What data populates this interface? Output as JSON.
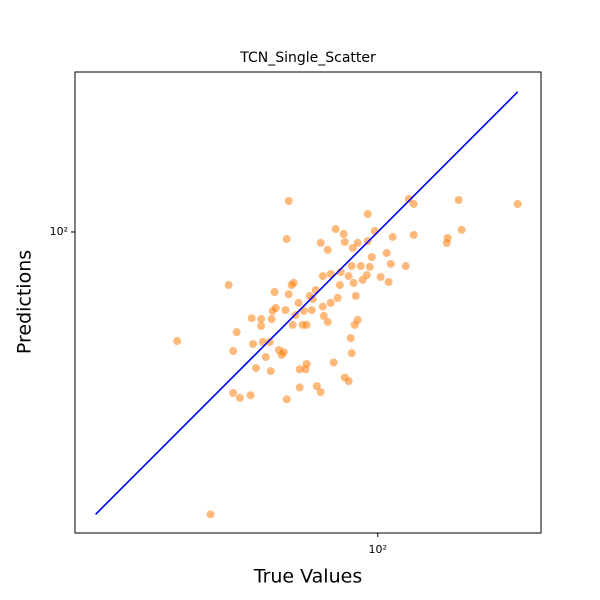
{
  "chart_data": {
    "type": "scatter",
    "title": "TCN_Single_Scatter",
    "x_label": "True Values",
    "y_label": "Predictions",
    "log_x": true,
    "log_y": true,
    "color": "#ff7f0e",
    "xlim": [
      17.5,
      256
    ],
    "ylim": [
      17.7,
      251
    ],
    "xticks": [
      {
        "value": 100,
        "label": "10²"
      }
    ],
    "yticks": [
      {
        "value": 100,
        "label": "10²"
      }
    ],
    "x": [
      31.5,
      38.2,
      42.4,
      43.5,
      43.5,
      44.4,
      45.2,
      48.1,
      48.4,
      48.8,
      49.6,
      51.1,
      51.1,
      51.6,
      52.5,
      53.7,
      54.0,
      54.3,
      54.6,
      55.2,
      55.6,
      56.6,
      57.5,
      58.2,
      58.8,
      59.2,
      59.2,
      59.9,
      59.9,
      60.9,
      61.3,
      61.6,
      62.3,
      63.4,
      63.8,
      63.8,
      64.9,
      65.3,
      66.0,
      66.4,
      66.4,
      67.6,
      68.4,
      68.8,
      70.0,
      70.4,
      72.0,
      72.0,
      72.9,
      72.9,
      73.3,
      75.0,
      75.0,
      76.3,
      76.3,
      77.6,
      78.5,
      79.4,
      80.4,
      80.8,
      82.2,
      82.7,
      82.7,
      84.6,
      84.6,
      85.6,
      86.1,
      86.1,
      86.6,
      87.0,
      87.6,
      88.1,
      89.1,
      89.1,
      90.7,
      91.7,
      93.9,
      94.4,
      94.4,
      95.5,
      96.6,
      98.3,
      101.7,
      105.3,
      106.5,
      107.8,
      109.0,
      117.5,
      119.6,
      123.0,
      123.0,
      148.8,
      149.6,
      159.4,
      162.1,
      223.9
    ],
    "values": [
      53.4,
      19.7,
      73.7,
      39.6,
      50.4,
      56.2,
      38.5,
      39.1,
      60.9,
      52.5,
      45.7,
      60.6,
      58.2,
      53.1,
      48.7,
      53.1,
      44.9,
      60.6,
      63.5,
      70.8,
      64.6,
      50.7,
      49.3,
      50.1,
      63.8,
      38.2,
      96.0,
      119.5,
      69.9,
      73.7,
      58.6,
      74.6,
      62.0,
      66.5,
      45.4,
      40.9,
      58.6,
      63.5,
      45.4,
      46.8,
      58.6,
      69.2,
      63.8,
      68.0,
      71.6,
      41.2,
      93.9,
      39.8,
      65.1,
      77.6,
      61.7,
      90.2,
      59.6,
      78.5,
      66.5,
      47.2,
      101.7,
      68.4,
      73.7,
      79.4,
      98.9,
      43.3,
      94.4,
      42.4,
      77.6,
      54.3,
      49.8,
      82.2,
      91.2,
      74.6,
      58.6,
      69.2,
      60.3,
      93.9,
      82.2,
      75.9,
      78.0,
      110.9,
      94.9,
      81.8,
      86.6,
      100.6,
      77.2,
      88.6,
      75.0,
      83.2,
      97.2,
      82.2,
      120.9,
      117.5,
      98.3,
      93.9,
      96.6,
      120.2,
      101.2,
      117.5
    ],
    "identity_line": {
      "color": "blue",
      "x": [
        19.7,
        223.9
      ],
      "values": [
        19.7,
        223.9
      ]
    }
  }
}
